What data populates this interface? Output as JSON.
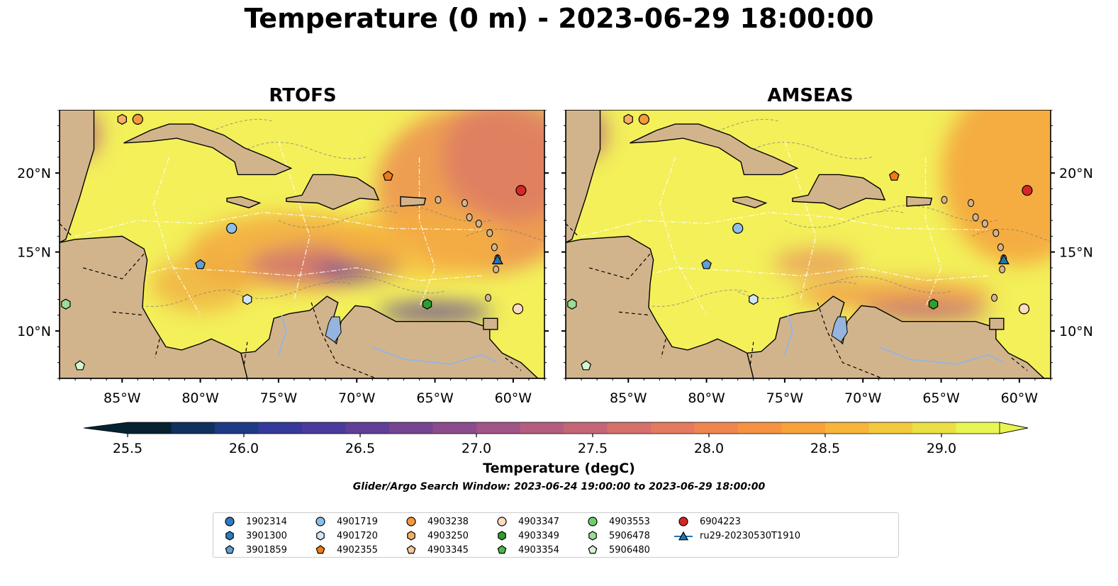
{
  "figure": {
    "title": "Temperature (0 m) - 2023-06-29 18:00:00",
    "search_window": "Glider/Argo Search Window: 2023-06-24 19:00:00 to 2023-06-29 18:00:00"
  },
  "panels": [
    {
      "title": "RTOFS"
    },
    {
      "title": "AMSEAS"
    }
  ],
  "axes": {
    "lon_ticks": [
      "85°W",
      "80°W",
      "75°W",
      "70°W",
      "65°W",
      "60°W"
    ],
    "lat_ticks": [
      "20°N",
      "15°N",
      "10°N"
    ],
    "extent": {
      "lon": [
        -89,
        -58
      ],
      "lat": [
        7,
        24
      ]
    }
  },
  "colorbar": {
    "label": "Temperature (degC)",
    "ticks": [
      "25.5",
      "26.0",
      "26.5",
      "27.0",
      "27.5",
      "28.0",
      "28.5",
      "29.0"
    ],
    "range": [
      25.5,
      29.25
    ],
    "colors": [
      "#062231",
      "#10305e",
      "#1f3a84",
      "#34399a",
      "#4a3a9c",
      "#613f98",
      "#764592",
      "#8b4b8c",
      "#a05487",
      "#b45d80",
      "#c56676",
      "#d5706b",
      "#e47a5e",
      "#ef8650",
      "#f59343",
      "#f8a23b",
      "#f7b53a",
      "#f3c93d",
      "#eadf44",
      "#e8f655"
    ]
  },
  "colors": {
    "land": "#d2b48c",
    "inland_water": "#96b5de",
    "warm_sea": "#f3f05a",
    "hot_sea": "#f4a33c"
  },
  "legend": {
    "entries": [
      {
        "label": "1902314",
        "marker": "circle",
        "color": "#2e7bbf"
      },
      {
        "label": "3901300",
        "marker": "hexagon",
        "color": "#2e7bbf"
      },
      {
        "label": "3901859",
        "marker": "pentagon",
        "color": "#5fa0d6"
      },
      {
        "label": "4901719",
        "marker": "circle",
        "color": "#8cbfe8"
      },
      {
        "label": "4901720",
        "marker": "hexagon",
        "color": "#cfe6f7"
      },
      {
        "label": "4902355",
        "marker": "pentagon",
        "color": "#f07a14"
      },
      {
        "label": "4903238",
        "marker": "circle",
        "color": "#f39a3c"
      },
      {
        "label": "4903250",
        "marker": "hexagon",
        "color": "#f6ae63"
      },
      {
        "label": "4903345",
        "marker": "pentagon",
        "color": "#f8c89a"
      },
      {
        "label": "4903347",
        "marker": "circle",
        "color": "#fbdcc0"
      },
      {
        "label": "4903349",
        "marker": "hexagon",
        "color": "#2ca02c"
      },
      {
        "label": "4903354",
        "marker": "pentagon",
        "color": "#4bb84b"
      },
      {
        "label": "4903553",
        "marker": "circle",
        "color": "#6fcf6f"
      },
      {
        "label": "5906478",
        "marker": "hexagon",
        "color": "#9bdc9b"
      },
      {
        "label": "5906480",
        "marker": "pentagon",
        "color": "#d5f5d0"
      },
      {
        "label": "6904223",
        "marker": "circle",
        "color": "#d62728"
      },
      {
        "label": "ru29-20230530T1910",
        "marker": "triangle-line",
        "color": "#1f77b4"
      }
    ]
  },
  "platforms": [
    {
      "id": "4903250",
      "lon": -85.0,
      "lat": 23.4
    },
    {
      "id": "4903238",
      "lon": -84.0,
      "lat": 23.4
    },
    {
      "id": "4902355",
      "lon": -68.0,
      "lat": 19.8
    },
    {
      "id": "6904223",
      "lon": -59.5,
      "lat": 18.9
    },
    {
      "id": "4901719",
      "lon": -78.0,
      "lat": 16.5
    },
    {
      "id": "3901859",
      "lon": -80.0,
      "lat": 14.2
    },
    {
      "id": "ru29-20230530T1910",
      "lon": -61.0,
      "lat": 14.5
    },
    {
      "id": "4901720",
      "lon": -77.0,
      "lat": 12.0
    },
    {
      "id": "4903349",
      "lon": -65.5,
      "lat": 11.7
    },
    {
      "id": "4903347",
      "lon": -59.7,
      "lat": 11.4
    },
    {
      "id": "5906478",
      "lon": -88.6,
      "lat": 11.7
    },
    {
      "id": "5906480",
      "lon": -87.7,
      "lat": 7.8
    }
  ]
}
